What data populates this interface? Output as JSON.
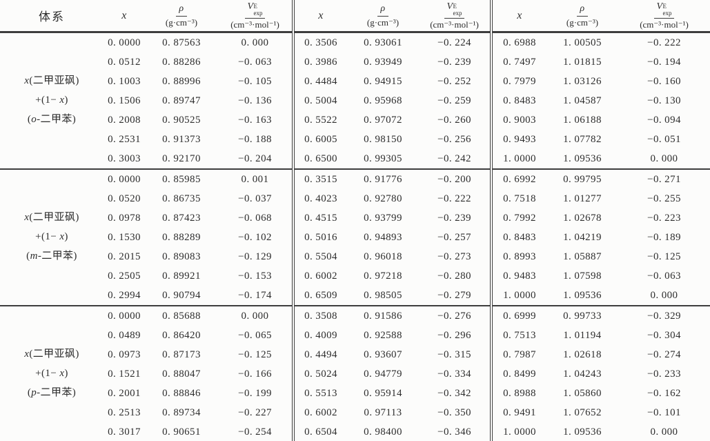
{
  "table": {
    "header": {
      "system": "体系",
      "x": "x",
      "rho": {
        "num": "ρ",
        "den": "(g·cm⁻³)"
      },
      "v": {
        "base": "V",
        "sup": "E",
        "sub": "exp",
        "den": "(cm⁻³·mol⁻¹)"
      }
    },
    "columns_per_block": [
      "x",
      "rho",
      "v_exp"
    ],
    "groups": [
      {
        "label": [
          [
            {
              "t": "x",
              "i": true
            },
            {
              "t": "(二甲亚砜)",
              "i": false
            }
          ],
          [
            {
              "t": "+(1− ",
              "i": false
            },
            {
              "t": "x",
              "i": true
            },
            {
              "t": ")",
              "i": false
            }
          ],
          [
            {
              "t": "(",
              "i": false
            },
            {
              "t": "o",
              "i": true
            },
            {
              "t": "-二甲苯)",
              "i": false
            }
          ]
        ],
        "rows": [
          [
            "0. 0000",
            "0. 87563",
            "0. 000",
            "0. 3506",
            "0. 93061",
            "−0. 224",
            "0. 6988",
            "1. 00505",
            "−0. 222"
          ],
          [
            "0. 0512",
            "0. 88286",
            "−0. 063",
            "0. 3986",
            "0. 93949",
            "−0. 239",
            "0. 7497",
            "1. 01815",
            "−0. 194"
          ],
          [
            "0. 1003",
            "0. 88996",
            "−0. 105",
            "0. 4484",
            "0. 94915",
            "−0. 252",
            "0. 7979",
            "1. 03126",
            "−0. 160"
          ],
          [
            "0. 1506",
            "0. 89747",
            "−0. 136",
            "0. 5004",
            "0. 95968",
            "−0. 259",
            "0. 8483",
            "1. 04587",
            "−0. 130"
          ],
          [
            "0. 2008",
            "0. 90525",
            "−0. 163",
            "0. 5522",
            "0. 97072",
            "−0. 260",
            "0. 9003",
            "1. 06188",
            "−0. 094"
          ],
          [
            "0. 2531",
            "0. 91373",
            "−0. 188",
            "0. 6005",
            "0. 98150",
            "−0. 256",
            "0. 9493",
            "1. 07782",
            "−0. 051"
          ],
          [
            "0. 3003",
            "0. 92170",
            "−0. 204",
            "0. 6500",
            "0. 99305",
            "−0. 242",
            "1. 0000",
            "1. 09536",
            "0. 000"
          ]
        ]
      },
      {
        "label": [
          [
            {
              "t": "x",
              "i": true
            },
            {
              "t": "(二甲亚砜)",
              "i": false
            }
          ],
          [
            {
              "t": "+(1− ",
              "i": false
            },
            {
              "t": "x",
              "i": true
            },
            {
              "t": ")",
              "i": false
            }
          ],
          [
            {
              "t": "(",
              "i": false
            },
            {
              "t": "m",
              "i": true
            },
            {
              "t": "-二甲苯)",
              "i": false
            }
          ]
        ],
        "rows": [
          [
            "0. 0000",
            "0. 85985",
            "0. 001",
            "0. 3515",
            "0. 91776",
            "−0. 200",
            "0. 6992",
            "0. 99795",
            "−0. 271"
          ],
          [
            "0. 0520",
            "0. 86735",
            "−0. 037",
            "0. 4023",
            "0. 92780",
            "−0. 222",
            "0. 7518",
            "1. 01277",
            "−0. 255"
          ],
          [
            "0. 0978",
            "0. 87423",
            "−0. 068",
            "0. 4515",
            "0. 93799",
            "−0. 239",
            "0. 7992",
            "1. 02678",
            "−0. 223"
          ],
          [
            "0. 1530",
            "0. 88289",
            "−0. 102",
            "0. 5016",
            "0. 94893",
            "−0. 257",
            "0. 8483",
            "1. 04219",
            "−0. 189"
          ],
          [
            "0. 2015",
            "0. 89083",
            "−0. 129",
            "0. 5504",
            "0. 96018",
            "−0. 273",
            "0. 8993",
            "1. 05887",
            "−0. 125"
          ],
          [
            "0. 2505",
            "0. 89921",
            "−0. 153",
            "0. 6002",
            "0. 97218",
            "−0. 280",
            "0. 9483",
            "1. 07598",
            "−0. 063"
          ],
          [
            "0. 2994",
            "0. 90794",
            "−0. 174",
            "0. 6509",
            "0. 98505",
            "−0. 279",
            "1. 0000",
            "1. 09536",
            "0. 000"
          ]
        ]
      },
      {
        "label": [
          [
            {
              "t": "x",
              "i": true
            },
            {
              "t": "(二甲亚砜)",
              "i": false
            }
          ],
          [
            {
              "t": "+(1− ",
              "i": false
            },
            {
              "t": "x",
              "i": true
            },
            {
              "t": ")",
              "i": false
            }
          ],
          [
            {
              "t": "(",
              "i": false
            },
            {
              "t": "p",
              "i": true
            },
            {
              "t": "-二甲苯)",
              "i": false
            }
          ]
        ],
        "rows": [
          [
            "0. 0000",
            "0. 85688",
            "0. 000",
            "0. 3508",
            "0. 91586",
            "−0. 276",
            "0. 6999",
            "0. 99733",
            "−0. 329"
          ],
          [
            "0. 0489",
            "0. 86420",
            "−0. 065",
            "0. 4009",
            "0. 92588",
            "−0. 296",
            "0. 7513",
            "1. 01194",
            "−0. 304"
          ],
          [
            "0. 0973",
            "0. 87173",
            "−0. 125",
            "0. 4494",
            "0. 93607",
            "−0. 315",
            "0. 7987",
            "1. 02618",
            "−0. 274"
          ],
          [
            "0. 1521",
            "0. 88047",
            "−0. 166",
            "0. 5024",
            "0. 94779",
            "−0. 334",
            "0. 8499",
            "1. 04243",
            "−0. 233"
          ],
          [
            "0. 2001",
            "0. 88846",
            "−0. 199",
            "0. 5513",
            "0. 95914",
            "−0. 342",
            "0. 8988",
            "1. 05860",
            "−0. 162"
          ],
          [
            "0. 2513",
            "0. 89734",
            "−0. 227",
            "0. 6002",
            "0. 97113",
            "−0. 350",
            "0. 9491",
            "1. 07652",
            "−0. 101"
          ],
          [
            "0. 3017",
            "0. 90651",
            "−0. 254",
            "0. 6504",
            "0. 98400",
            "−0. 346",
            "1. 0000",
            "1. 09536",
            "0. 000"
          ]
        ]
      }
    ]
  }
}
